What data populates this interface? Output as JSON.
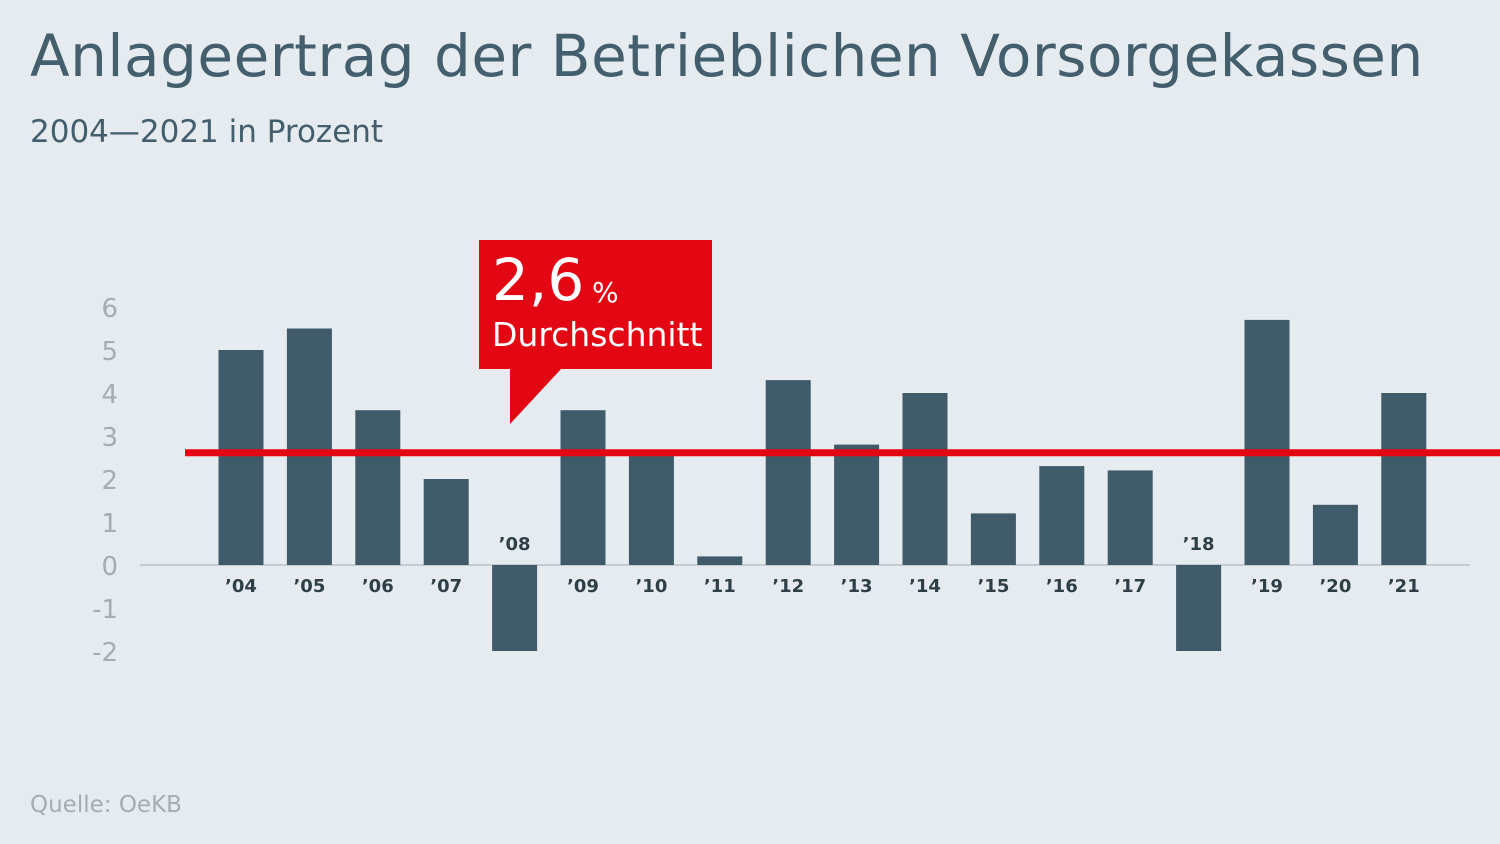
{
  "chart_data": {
    "type": "bar",
    "title": "Anlageertrag der Betrieblichen Vorsorgekassen",
    "subtitle": "2004—2021 in Prozent",
    "categories": [
      "’04",
      "’05",
      "’06",
      "’07",
      "’08",
      "’09",
      "’10",
      "’11",
      "’12",
      "’13",
      "’14",
      "’15",
      "’16",
      "’17",
      "’18",
      "’19",
      "’20",
      "’21"
    ],
    "values": [
      5.0,
      5.5,
      3.6,
      2.0,
      -2.0,
      3.6,
      2.6,
      0.2,
      4.3,
      2.8,
      4.0,
      1.2,
      2.3,
      2.2,
      -2.0,
      5.7,
      1.4,
      4.0
    ],
    "ylim": [
      -2,
      6
    ],
    "yticks": [
      "6",
      "5",
      "4",
      "3",
      "2",
      "1",
      "0",
      "-1",
      "-2"
    ],
    "xlabel": "",
    "ylabel": "",
    "grid": false,
    "average": {
      "value": 2.6,
      "value_label": "2,6",
      "unit": "%",
      "label": "Durchschnitt"
    },
    "colors": {
      "bar": "#3f5b6a",
      "average": "#e30613",
      "background": "#e6ebef"
    }
  },
  "source": "Quelle: OeKB"
}
